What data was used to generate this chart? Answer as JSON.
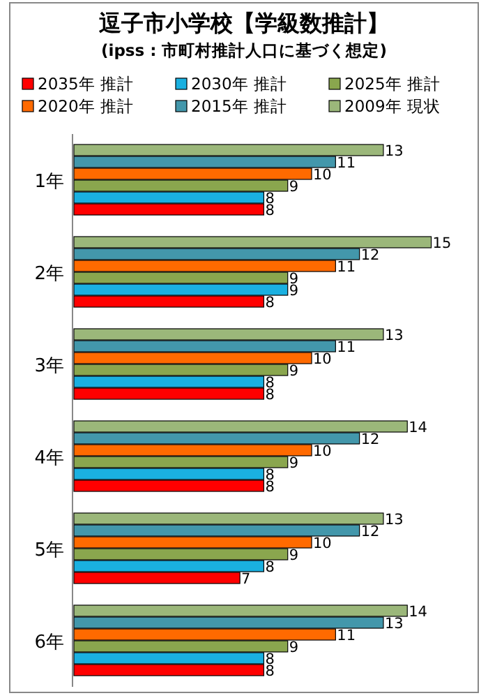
{
  "chart_data": {
    "type": "bar",
    "orientation": "horizontal",
    "title": "逗子市小学校【学級数推計】",
    "subtitle": "(ipss : 市町村推計人口に基づく想定)",
    "categories": [
      "1年",
      "2年",
      "3年",
      "4年",
      "5年",
      "6年"
    ],
    "series": [
      {
        "name": "2035年 推計",
        "color": "#ff0000",
        "values": [
          8,
          8,
          8,
          8,
          7,
          8
        ]
      },
      {
        "name": "2030年 推計",
        "color": "#1ab0e0",
        "values": [
          8,
          9,
          8,
          8,
          8,
          8
        ]
      },
      {
        "name": "2025年 推計",
        "color": "#8aa64e",
        "values": [
          9,
          9,
          9,
          9,
          9,
          9
        ]
      },
      {
        "name": "2020年 推計",
        "color": "#ff6a00",
        "values": [
          10,
          11,
          10,
          10,
          10,
          11
        ]
      },
      {
        "name": "2015年 推計",
        "color": "#4397ab",
        "values": [
          11,
          12,
          11,
          12,
          12,
          13
        ]
      },
      {
        "name": "2009年 現状",
        "color": "#9bb77a",
        "values": [
          13,
          15,
          13,
          14,
          13,
          14
        ]
      }
    ],
    "data_labels": true,
    "legend": "top"
  }
}
